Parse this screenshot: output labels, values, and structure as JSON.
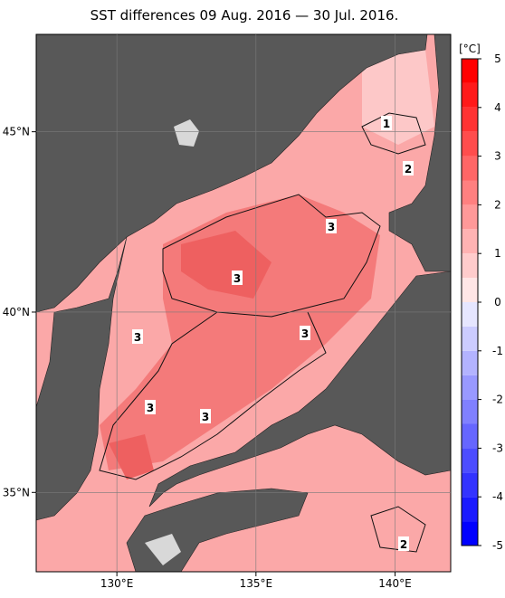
{
  "title": "SST differences 09 Aug. 2016 — 30 Jul. 2016.",
  "map": {
    "xlim": [
      127.1,
      142
    ],
    "ylim": [
      32.8,
      47.7
    ],
    "xticks": [
      {
        "value": 130,
        "label": "130°E"
      },
      {
        "value": 135,
        "label": "135°E"
      },
      {
        "value": 140,
        "label": "140°E"
      }
    ],
    "yticks": [
      {
        "value": 45,
        "label": "45°N"
      },
      {
        "value": 40,
        "label": "40°N"
      },
      {
        "value": 35,
        "label": "35°N"
      }
    ],
    "contour_labels": [
      "1",
      "2",
      "3",
      "3",
      "3",
      "3",
      "3",
      "3",
      "2"
    ]
  },
  "colorbar": {
    "unit": "[°C]",
    "lim": [
      -5,
      5
    ],
    "ticks": [
      5,
      4,
      3,
      2,
      1,
      0,
      -1,
      -2,
      -3,
      -4,
      -5
    ],
    "colors": [
      "#0000ff",
      "#1a1aff",
      "#3333ff",
      "#4d4dff",
      "#6666ff",
      "#8080ff",
      "#9999ff",
      "#b3b3ff",
      "#ccccff",
      "#e6e6ff",
      "#ffe6e6",
      "#ffcccc",
      "#ffb3b3",
      "#ff9999",
      "#ff8080",
      "#ff6666",
      "#ff4d4d",
      "#ff3333",
      "#ff1a1a",
      "#ff0000"
    ]
  }
}
